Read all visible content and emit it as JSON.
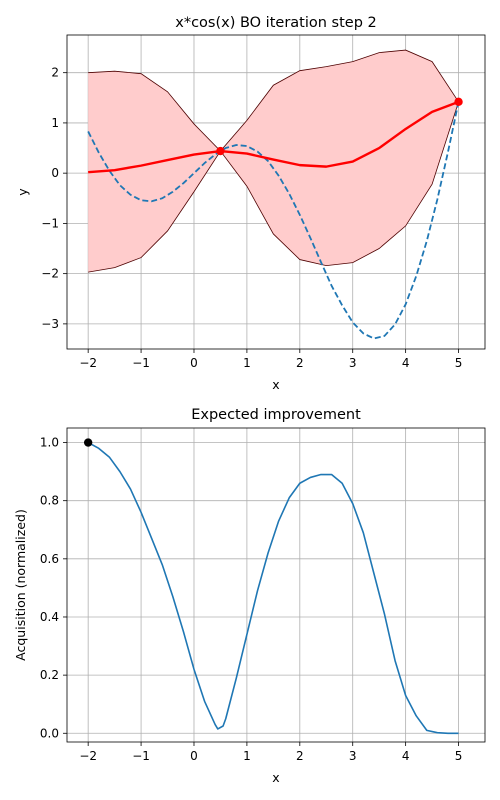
{
  "colors": {
    "band_fill": "#ffcccc",
    "band_edge": "#4d0000",
    "mean": "#ff0000",
    "objective": "#1f77b4",
    "acquisition": "#1f77b4",
    "observations": "#ff0000",
    "next_point": "#000000"
  },
  "chart_data": [
    {
      "type": "line",
      "title": "x*cos(x) BO iteration step 2",
      "xlabel": "x",
      "ylabel": "y",
      "xlim": [
        -2.4,
        5.5
      ],
      "ylim": [
        -3.5,
        2.75
      ],
      "xticks": [
        -2,
        -1,
        0,
        1,
        2,
        3,
        4,
        5
      ],
      "yticks": [
        -3,
        -2,
        -1,
        0,
        1,
        2
      ],
      "grid": true,
      "series": [
        {
          "style": "dashed",
          "color": "#1f77b4",
          "x": [
            -2.0,
            -1.8,
            -1.6,
            -1.4,
            -1.2,
            -1.0,
            -0.8,
            -0.6,
            -0.4,
            -0.2,
            0.0,
            0.2,
            0.4,
            0.6,
            0.8,
            1.0,
            1.2,
            1.4,
            1.6,
            1.8,
            2.0,
            2.2,
            2.4,
            2.6,
            2.8,
            3.0,
            3.2,
            3.4,
            3.6,
            3.8,
            4.0,
            4.2,
            4.4,
            4.6,
            4.8,
            5.0
          ],
          "y": [
            0.83,
            0.41,
            0.05,
            -0.24,
            -0.43,
            -0.54,
            -0.56,
            -0.5,
            -0.37,
            -0.2,
            0.0,
            0.2,
            0.37,
            0.5,
            0.56,
            0.54,
            0.43,
            0.24,
            -0.05,
            -0.41,
            -0.83,
            -1.29,
            -1.77,
            -2.24,
            -2.63,
            -2.97,
            -3.19,
            -3.29,
            -3.24,
            -3.01,
            -2.61,
            -2.05,
            -1.35,
            -0.52,
            0.42,
            1.42
          ]
        },
        {
          "style": "solid",
          "color": "#ff0000",
          "x": [
            -2.0,
            -1.5,
            -1.0,
            -0.5,
            0.0,
            0.5,
            1.0,
            1.5,
            2.0,
            2.5,
            3.0,
            3.5,
            4.0,
            4.5,
            5.0
          ],
          "y": [
            0.02,
            0.06,
            0.15,
            0.26,
            0.37,
            0.44,
            0.39,
            0.27,
            0.16,
            0.13,
            0.23,
            0.5,
            0.88,
            1.22,
            1.42
          ]
        }
      ],
      "band": {
        "x": [
          -2.0,
          -1.5,
          -1.0,
          -0.5,
          0.0,
          0.5,
          1.0,
          1.5,
          2.0,
          2.5,
          3.0,
          3.5,
          4.0,
          4.5,
          5.0
        ],
        "upper": [
          2.0,
          2.03,
          1.98,
          1.62,
          0.98,
          0.44,
          1.05,
          1.75,
          2.04,
          2.12,
          2.22,
          2.4,
          2.45,
          2.22,
          1.42
        ],
        "lower": [
          -1.97,
          -1.88,
          -1.68,
          -1.15,
          -0.37,
          0.44,
          -0.26,
          -1.21,
          -1.72,
          -1.84,
          -1.78,
          -1.5,
          -1.05,
          -0.22,
          1.42
        ]
      },
      "points": [
        {
          "x": 0.5,
          "y": 0.44
        },
        {
          "x": 5.0,
          "y": 1.42
        }
      ]
    },
    {
      "type": "line",
      "title": "Expected improvement",
      "xlabel": "x",
      "ylabel": "Acquisition (normalized)",
      "xlim": [
        -2.4,
        5.5
      ],
      "ylim": [
        -0.03,
        1.05
      ],
      "xticks": [
        -2,
        -1,
        0,
        1,
        2,
        3,
        4,
        5
      ],
      "yticks": [
        0.0,
        0.2,
        0.4,
        0.6,
        0.8,
        1.0
      ],
      "yticklabels": [
        "0.0",
        "0.2",
        "0.4",
        "0.6",
        "0.8",
        "1.0"
      ],
      "grid": true,
      "series": [
        {
          "style": "solid",
          "color": "#1f77b4",
          "x": [
            -2.0,
            -1.8,
            -1.6,
            -1.4,
            -1.2,
            -1.0,
            -0.8,
            -0.6,
            -0.4,
            -0.2,
            0.0,
            0.2,
            0.4,
            0.45,
            0.55,
            0.6,
            0.8,
            1.0,
            1.2,
            1.4,
            1.6,
            1.8,
            2.0,
            2.2,
            2.4,
            2.5,
            2.6,
            2.8,
            3.0,
            3.2,
            3.4,
            3.6,
            3.8,
            4.0,
            4.2,
            4.4,
            4.6,
            4.8,
            5.0
          ],
          "y": [
            1.0,
            0.98,
            0.95,
            0.9,
            0.84,
            0.76,
            0.67,
            0.58,
            0.47,
            0.35,
            0.22,
            0.11,
            0.03,
            0.015,
            0.025,
            0.05,
            0.19,
            0.34,
            0.49,
            0.62,
            0.73,
            0.81,
            0.86,
            0.88,
            0.89,
            0.89,
            0.89,
            0.86,
            0.79,
            0.69,
            0.55,
            0.41,
            0.25,
            0.13,
            0.06,
            0.01,
            0.002,
            0.0,
            0.0
          ]
        }
      ],
      "points": [
        {
          "x": -2.0,
          "y": 1.0
        }
      ]
    }
  ]
}
